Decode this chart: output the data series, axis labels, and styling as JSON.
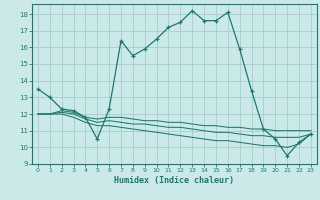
{
  "xlabel": "Humidex (Indice chaleur)",
  "xlim": [
    -0.5,
    23.5
  ],
  "ylim": [
    9,
    18.6
  ],
  "yticks": [
    9,
    10,
    11,
    12,
    13,
    14,
    15,
    16,
    17,
    18
  ],
  "xticks": [
    0,
    1,
    2,
    3,
    4,
    5,
    6,
    7,
    8,
    9,
    10,
    11,
    12,
    13,
    14,
    15,
    16,
    17,
    18,
    19,
    20,
    21,
    22,
    23
  ],
  "bg_color": "#cce9e9",
  "line_color": "#1a7a6e",
  "grid_color": "#a8cccc",
  "lines": [
    {
      "x": [
        0,
        1,
        2,
        3,
        4,
        5,
        6,
        7,
        8,
        9,
        10,
        11,
        12,
        13,
        14,
        15,
        16,
        17,
        18,
        19,
        20,
        21,
        22,
        23
      ],
      "y": [
        13.5,
        13.0,
        12.3,
        12.2,
        11.8,
        10.5,
        12.3,
        16.4,
        15.5,
        15.9,
        16.5,
        17.2,
        17.5,
        18.2,
        17.6,
        17.6,
        18.1,
        15.9,
        13.4,
        11.1,
        10.5,
        9.5,
        10.3,
        10.8
      ],
      "marker": "+"
    },
    {
      "x": [
        0,
        1,
        2,
        3,
        4,
        5,
        6,
        7,
        8,
        9,
        10,
        11,
        12,
        13,
        14,
        15,
        16,
        17,
        18,
        19,
        20,
        21,
        22,
        23
      ],
      "y": [
        12.0,
        12.0,
        12.2,
        12.1,
        11.8,
        11.7,
        11.8,
        11.8,
        11.7,
        11.6,
        11.6,
        11.5,
        11.5,
        11.4,
        11.3,
        11.3,
        11.2,
        11.2,
        11.1,
        11.1,
        11.0,
        11.0,
        11.0,
        11.0
      ],
      "marker": null
    },
    {
      "x": [
        0,
        1,
        2,
        3,
        4,
        5,
        6,
        7,
        8,
        9,
        10,
        11,
        12,
        13,
        14,
        15,
        16,
        17,
        18,
        19,
        20,
        21,
        22,
        23
      ],
      "y": [
        12.0,
        12.0,
        12.1,
        12.0,
        11.7,
        11.5,
        11.6,
        11.5,
        11.4,
        11.4,
        11.3,
        11.2,
        11.2,
        11.1,
        11.0,
        10.9,
        10.9,
        10.8,
        10.7,
        10.7,
        10.6,
        10.6,
        10.6,
        10.8
      ],
      "marker": null
    },
    {
      "x": [
        0,
        1,
        2,
        3,
        4,
        5,
        6,
        7,
        8,
        9,
        10,
        11,
        12,
        13,
        14,
        15,
        16,
        17,
        18,
        19,
        20,
        21,
        22,
        23
      ],
      "y": [
        12.0,
        12.0,
        12.0,
        11.8,
        11.5,
        11.3,
        11.3,
        11.2,
        11.1,
        11.0,
        10.9,
        10.8,
        10.7,
        10.6,
        10.5,
        10.4,
        10.4,
        10.3,
        10.2,
        10.1,
        10.1,
        10.0,
        10.2,
        10.8
      ],
      "marker": null
    }
  ]
}
